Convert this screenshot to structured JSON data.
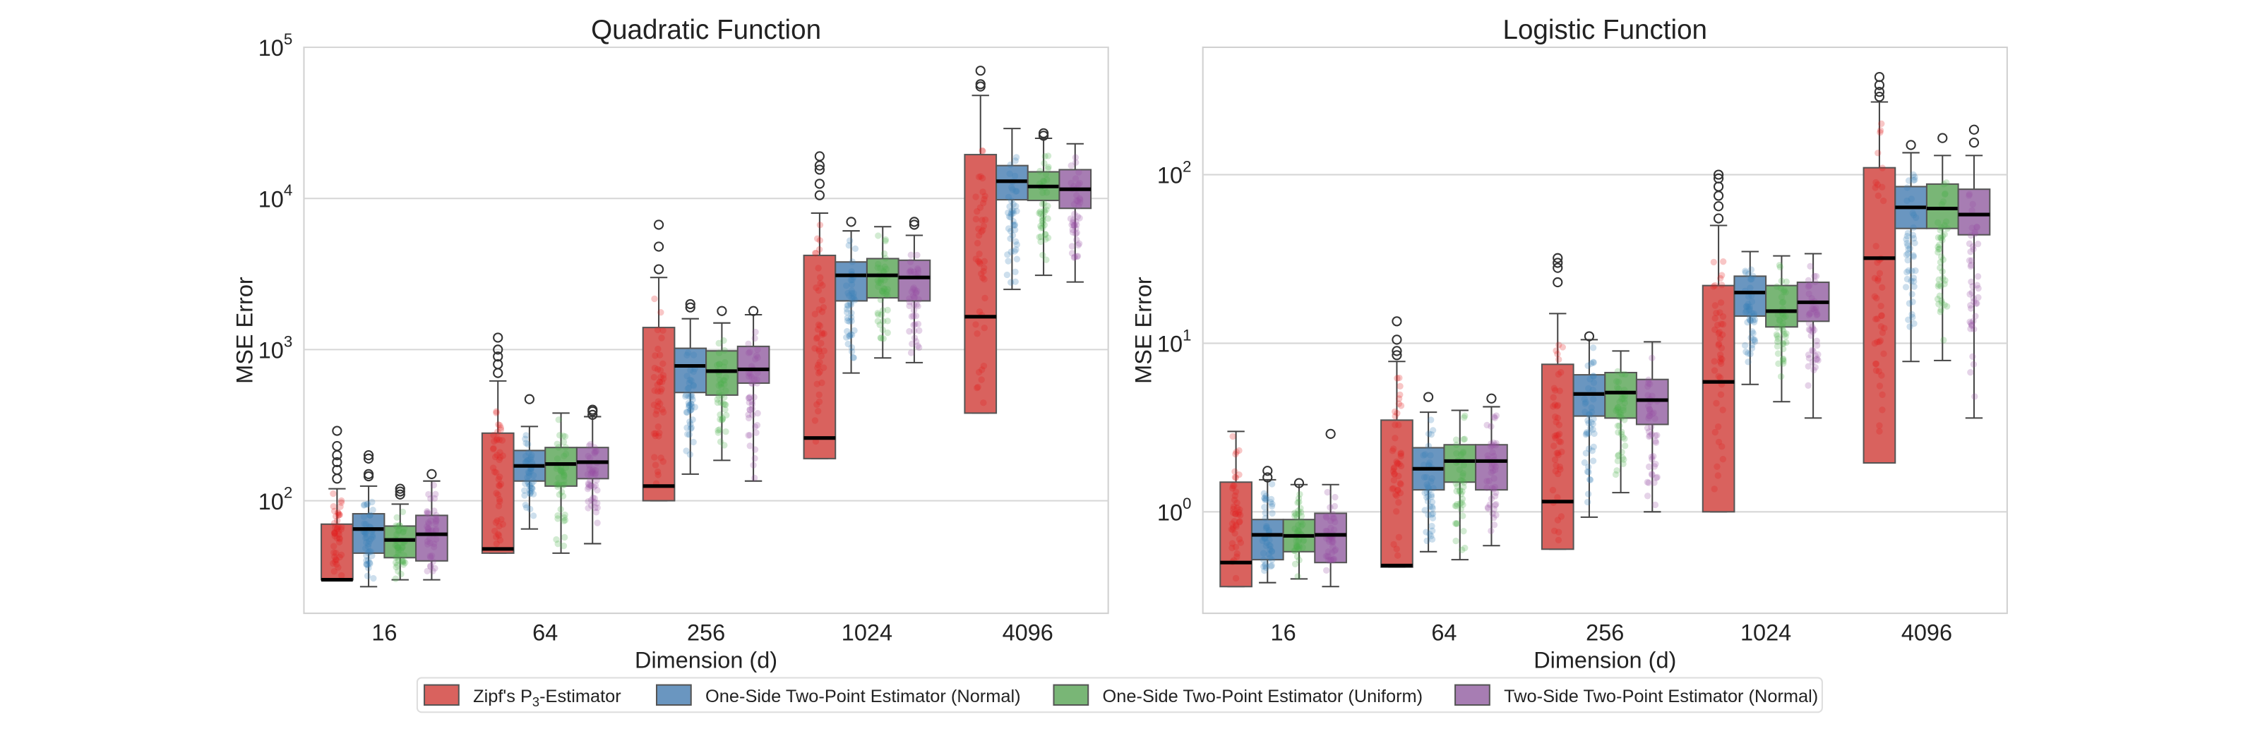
{
  "chart_data": [
    {
      "type": "box",
      "title": "Quadratic Function",
      "xlabel": "Dimension (d)",
      "ylabel": "MSE Error",
      "yscale": "log",
      "ylim": [
        18,
        100000
      ],
      "yticks": [
        "10^2",
        "10^3",
        "10^4",
        "10^5"
      ],
      "categories": [
        "16",
        "64",
        "256",
        "1024",
        "4096"
      ],
      "series": [
        {
          "name": "Zipf's P3-Estimator",
          "color": "#e41a1c",
          "boxes": [
            [
              30,
              30,
              30,
              70,
              120
            ],
            [
              45,
              45,
              48,
              280,
              620
            ],
            [
              100,
              100,
              125,
              1400,
              3000
            ],
            [
              190,
              190,
              260,
              4200,
              8000
            ],
            [
              380,
              380,
              1650,
              19500,
              48000
            ]
          ],
          "outliers": [
            [
              140,
              160,
              180,
              200,
              230,
              290
            ],
            [
              700,
              800,
              900,
              1000,
              1200
            ],
            [
              3400,
              4800,
              6700
            ],
            [
              10500,
              12500,
              15500,
              16500,
              19000
            ],
            [
              55000,
              57000,
              70000
            ]
          ]
        },
        {
          "name": "One-Side Two-Point Estimator (Normal)",
          "color": "#377eb8",
          "boxes": [
            [
              27,
              45,
              65,
              82,
              125
            ],
            [
              65,
              135,
              170,
              215,
              310
            ],
            [
              150,
              520,
              780,
              1020,
              1600
            ],
            [
              700,
              2100,
              3100,
              3800,
              6100
            ],
            [
              2500,
              9800,
              13000,
              16500,
              29000
            ]
          ],
          "outliers": [
            [
              150,
              145,
              190,
              200
            ],
            [
              470
            ],
            [
              1900,
              2000
            ],
            [
              7000
            ],
            []
          ]
        },
        {
          "name": "One-Side Two-Point Estimator (Uniform)",
          "color": "#4daf4a",
          "boxes": [
            [
              30,
              42,
              55,
              68,
              95
            ],
            [
              45,
              125,
              175,
              225,
              380
            ],
            [
              185,
              500,
              720,
              980,
              1500
            ],
            [
              880,
              2200,
              3100,
              4000,
              6500
            ],
            [
              3100,
              9700,
              12000,
              15000,
              25000
            ]
          ],
          "outliers": [
            [
              110,
              115,
              120
            ],
            [],
            [
              1800
            ],
            [],
            [
              26000,
              27000
            ]
          ]
        },
        {
          "name": "Two-Side Two-Point Estimator (Normal)",
          "color": "#984ea3",
          "boxes": [
            [
              30,
              40,
              60,
              80,
              135
            ],
            [
              52,
              140,
              180,
              225,
              360
            ],
            [
              135,
              600,
              740,
              1050,
              1700
            ],
            [
              820,
              2100,
              3000,
              3900,
              5700
            ],
            [
              2800,
              8600,
              11500,
              15500,
              23000
            ]
          ],
          "outliers": [
            [
              150
            ],
            [
              370,
              390,
              400
            ],
            [
              1800
            ],
            [
              6700,
              7000
            ],
            []
          ]
        }
      ]
    },
    {
      "type": "box",
      "title": "Logistic Function",
      "xlabel": "Dimension (d)",
      "ylabel": "MSE Error",
      "yscale": "log",
      "ylim": [
        0.25,
        570
      ],
      "yticks": [
        "10^0",
        "10^1",
        "10^2"
      ],
      "categories": [
        "16",
        "64",
        "256",
        "1024",
        "4096"
      ],
      "series": [
        {
          "name": "Zipf's P3-Estimator",
          "color": "#e41a1c",
          "boxes": [
            [
              0.36,
              0.36,
              0.5,
              1.5,
              3.0
            ],
            [
              0.47,
              0.47,
              0.48,
              3.5,
              7.8
            ],
            [
              0.6,
              0.6,
              1.15,
              7.5,
              15
            ],
            [
              1.0,
              1.0,
              5.9,
              22,
              50
            ],
            [
              1.95,
              1.95,
              32,
              110,
              270
            ]
          ],
          "outliers": [
            [],
            [
              8.5,
              9,
              10.5,
              13.5
            ],
            [
              23,
              28,
              30,
              32
            ],
            [
              55,
              65,
              75,
              85,
              95,
              100
            ],
            [
              290,
              310,
              340,
              380
            ]
          ]
        },
        {
          "name": "One-Side Two-Point Estimator (Normal)",
          "color": "#377eb8",
          "boxes": [
            [
              0.38,
              0.52,
              0.73,
              0.9,
              1.55
            ],
            [
              0.58,
              1.35,
              1.8,
              2.4,
              3.9
            ],
            [
              0.93,
              3.7,
              5.0,
              6.5,
              10.5
            ],
            [
              5.7,
              14.5,
              20,
              25,
              35
            ],
            [
              7.8,
              48,
              64,
              85,
              135
            ]
          ],
          "outliers": [
            [
              1.6,
              1.75
            ],
            [
              4.8
            ],
            [
              11
            ],
            [],
            [
              150
            ]
          ]
        },
        {
          "name": "One-Side Two-Point Estimator (Uniform)",
          "color": "#4daf4a",
          "boxes": [
            [
              0.4,
              0.58,
              0.72,
              0.9,
              1.45
            ],
            [
              0.52,
              1.5,
              2.0,
              2.5,
              4.0
            ],
            [
              1.3,
              3.6,
              5.1,
              6.7,
              9.0
            ],
            [
              4.5,
              12.5,
              15.5,
              22,
              33
            ],
            [
              7.9,
              48,
              63,
              88,
              130
            ]
          ],
          "outliers": [
            [
              1.48
            ],
            [],
            [],
            [],
            [
              165
            ]
          ]
        },
        {
          "name": "Two-Side Two-Point Estimator (Normal)",
          "color": "#984ea3",
          "boxes": [
            [
              0.36,
              0.5,
              0.73,
              0.98,
              1.45
            ],
            [
              0.63,
              1.35,
              2.0,
              2.5,
              4.2
            ],
            [
              1.0,
              3.3,
              4.6,
              6.1,
              10.2
            ],
            [
              3.6,
              13.5,
              17.5,
              23,
              34
            ],
            [
              3.6,
              44,
              58,
              82,
              130
            ]
          ],
          "outliers": [
            [
              2.9
            ],
            [
              4.7
            ],
            [],
            [],
            [
              155,
              185
            ]
          ]
        }
      ]
    }
  ],
  "legend": {
    "items": [
      "Zipf's P",
      "3",
      "-Estimator",
      "One-Side Two-Point Estimator (Normal)",
      "One-Side Two-Point Estimator (Uniform)",
      "Two-Side Two-Point Estimator (Normal)"
    ],
    "colors": [
      "#d9625e",
      "#6a96c0",
      "#79b676",
      "#a77db3"
    ]
  }
}
